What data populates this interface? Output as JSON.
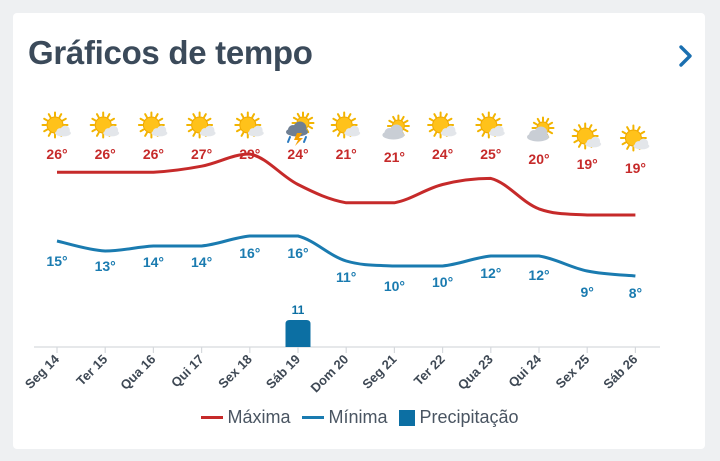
{
  "header": {
    "title": "Gráficos de tempo",
    "chevron_icon": "chevron-right-icon"
  },
  "colors": {
    "max": "#c62a2a",
    "min": "#1a7bb0",
    "precip": "#0c6fa3",
    "chevron": "#1a6fb0",
    "axis": "#d6d9dd",
    "tick_text": "#3e4854"
  },
  "chart_data": {
    "type": "line",
    "categories": [
      "Seg 14",
      "Ter 15",
      "Qua 16",
      "Qui 17",
      "Sex 18",
      "Sáb 19",
      "Dom 20",
      "Seg 21",
      "Ter 22",
      "Qua 23",
      "Qui 24",
      "Sex 25",
      "Sáb 26"
    ],
    "icons": [
      "sun-cloud-icon",
      "sun-cloud-icon",
      "sun-cloud-icon",
      "sun-cloud-icon",
      "sun-cloud-icon",
      "thunderstorm-icon",
      "sun-cloud-icon",
      "cloudy-icon",
      "sun-cloud-icon",
      "sun-cloud-icon",
      "cloudy-icon",
      "sun-cloud-icon",
      "sun-cloud-icon"
    ],
    "series": [
      {
        "name": "Máxima",
        "values": [
          26,
          26,
          26,
          27,
          29,
          24,
          21,
          21,
          24,
          25,
          20,
          19,
          19
        ],
        "labels": [
          "26°",
          "26°",
          "26°",
          "27°",
          "29°",
          "24°",
          "21°",
          "21°",
          "24°",
          "25°",
          "20°",
          "19°",
          "19°"
        ]
      },
      {
        "name": "Mínima",
        "values": [
          15,
          13,
          14,
          14,
          16,
          16,
          11,
          10,
          10,
          12,
          12,
          9,
          8
        ],
        "labels": [
          "15°",
          "13°",
          "14°",
          "14°",
          "16°",
          "16°",
          "11°",
          "10°",
          "10°",
          "12°",
          "12°",
          "9°",
          "8°"
        ]
      },
      {
        "name": "Precipitação",
        "values": [
          0,
          0,
          0,
          0,
          0,
          11,
          0,
          0,
          0,
          0,
          0,
          0,
          0
        ],
        "labels": [
          "",
          "",
          "",
          "",
          "",
          "11",
          "",
          "",
          "",
          "",
          "",
          "",
          ""
        ]
      }
    ],
    "legend": "bottom-center"
  }
}
